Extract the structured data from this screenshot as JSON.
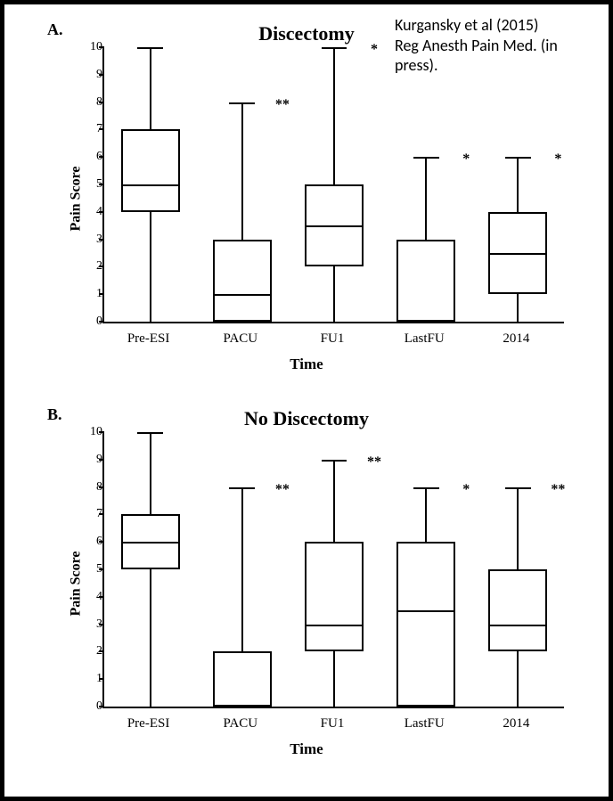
{
  "citation_line1": "Kurgansky et al (2015)",
  "citation_line2": "Reg Anesth Pain Med.  (in press).",
  "global": {
    "ylim": [
      0,
      10
    ],
    "ytick_step": 1,
    "ylabel": "Pain Score",
    "xlabel": "Time",
    "categories": [
      "Pre-ESI",
      "PACU",
      "FU1",
      "LastFU",
      "2014"
    ],
    "box_color": "#ffffff",
    "line_color": "#000000",
    "background_color": "#ffffff",
    "border_width": 2,
    "box_rel_width": 0.64,
    "cap_rel_width": 0.28,
    "font_family": "Times New Roman",
    "tick_fontsize": 14,
    "label_fontsize": 16,
    "title_fontsize": 22
  },
  "panels": [
    {
      "key": "A",
      "letter": "A.",
      "title": "Discectomy",
      "series": [
        {
          "cat": "Pre-ESI",
          "min": 0,
          "q1": 4,
          "median": 5,
          "q3": 7,
          "max": 10,
          "sig": ""
        },
        {
          "cat": "PACU",
          "min": 0,
          "q1": 0,
          "median": 1,
          "q3": 3,
          "max": 8,
          "sig": "**"
        },
        {
          "cat": "FU1",
          "min": 0,
          "q1": 2,
          "median": 3.5,
          "q3": 5,
          "max": 10,
          "sig": "*"
        },
        {
          "cat": "LastFU",
          "min": 0,
          "q1": 0,
          "median": 0,
          "q3": 3,
          "max": 6,
          "sig": "*"
        },
        {
          "cat": "2014",
          "min": 0,
          "q1": 1,
          "median": 2.5,
          "q3": 4,
          "max": 6,
          "sig": "*"
        }
      ]
    },
    {
      "key": "B",
      "letter": "B.",
      "title": "No Discectomy",
      "series": [
        {
          "cat": "Pre-ESI",
          "min": 0,
          "q1": 5,
          "median": 6,
          "q3": 7,
          "max": 10,
          "sig": ""
        },
        {
          "cat": "PACU",
          "min": 0,
          "q1": 0,
          "median": 0,
          "q3": 2,
          "max": 8,
          "sig": "**"
        },
        {
          "cat": "FU1",
          "min": 0,
          "q1": 2,
          "median": 3,
          "q3": 6,
          "max": 9,
          "sig": "**"
        },
        {
          "cat": "LastFU",
          "min": 0,
          "q1": 0,
          "median": 3.5,
          "q3": 6,
          "max": 8,
          "sig": "*"
        },
        {
          "cat": "2014",
          "min": 0,
          "q1": 2,
          "median": 3,
          "q3": 5,
          "max": 8,
          "sig": "**"
        }
      ]
    }
  ]
}
